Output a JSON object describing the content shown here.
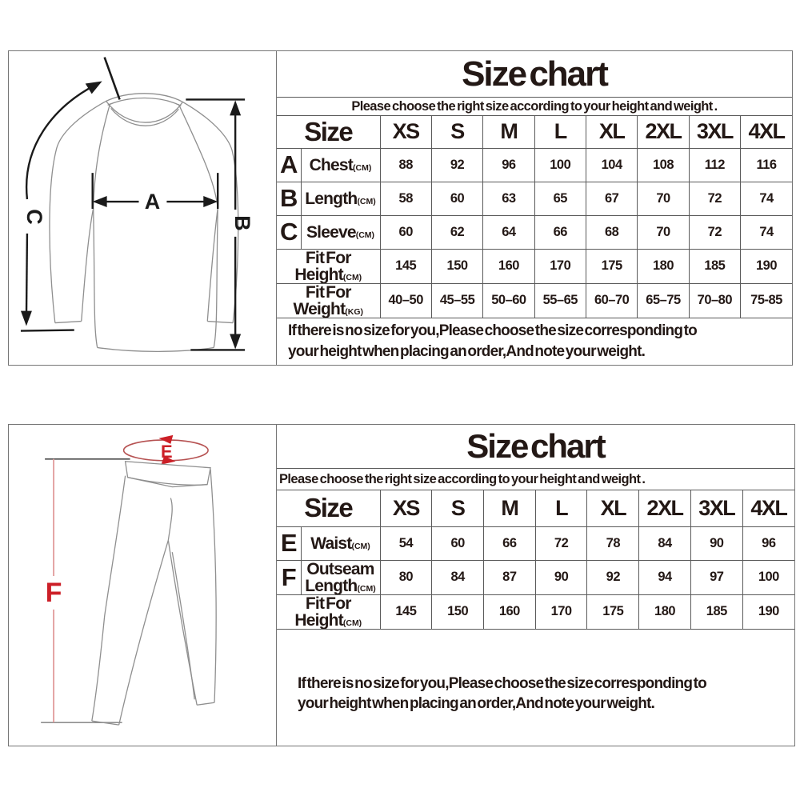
{
  "colors": {
    "red_accent": "#cc1f27",
    "red_soft": "#b65252",
    "line_dark": "#1a1a1a",
    "sketch_gray": "#8f8f8f",
    "border_gray": "#5a5a5a",
    "text": "#231815"
  },
  "panels": [
    {
      "title": "Size chart",
      "subtitle": "Please choose the right size according to your height and weight .",
      "diagram": {
        "labels": {
          "a": "A",
          "b": "B",
          "c": "C"
        }
      },
      "table": {
        "size_label": "Size",
        "columns": [
          "XS",
          "S",
          "M",
          "L",
          "XL",
          "2XL",
          "3XL",
          "4XL"
        ],
        "rows": [
          {
            "letter": "A",
            "name": "Chest",
            "unit": "(CM)",
            "values": [
              "88",
              "92",
              "96",
              "100",
              "104",
              "108",
              "112",
              "116"
            ]
          },
          {
            "letter": "B",
            "name": "Length",
            "unit": "(CM)",
            "values": [
              "58",
              "60",
              "63",
              "65",
              "67",
              "70",
              "72",
              "74"
            ]
          },
          {
            "letter": "C",
            "name": "Sleeve",
            "unit": "(CM)",
            "values": [
              "60",
              "62",
              "64",
              "66",
              "68",
              "70",
              "72",
              "74"
            ]
          },
          {
            "letter": "",
            "name": "Fit For Height",
            "unit": "(CM)",
            "values": [
              "145",
              "150",
              "160",
              "170",
              "175",
              "180",
              "185",
              "190"
            ]
          },
          {
            "letter": "",
            "name": "Fit For Weight",
            "unit": "(KG)",
            "values": [
              "40–50",
              "45–55",
              "50–60",
              "55–65",
              "60–70",
              "65–75",
              "70–80",
              "75-85"
            ]
          }
        ]
      },
      "note_line1": "If there is no size for you,Please choose the size corresponding to",
      "note_line2": "your height when placing an order,And note your weight."
    },
    {
      "title": "Size chart",
      "subtitle": "Please choose the right size according to your height and weight .",
      "diagram": {
        "labels": {
          "e": "E",
          "f": "F"
        }
      },
      "table": {
        "size_label": "Size",
        "columns": [
          "XS",
          "S",
          "M",
          "L",
          "XL",
          "2XL",
          "3XL",
          "4XL"
        ],
        "rows": [
          {
            "letter": "E",
            "name": "Waist",
            "unit": "(CM)",
            "values": [
              "54",
              "60",
              "66",
              "72",
              "78",
              "84",
              "90",
              "96"
            ]
          },
          {
            "letter": "F",
            "name": "Outseam Length",
            "unit": "(CM)",
            "values": [
              "80",
              "84",
              "87",
              "90",
              "92",
              "94",
              "97",
              "100"
            ]
          },
          {
            "letter": "",
            "name": "Fit For Height",
            "unit": "(CM)",
            "values": [
              "145",
              "150",
              "160",
              "170",
              "175",
              "180",
              "185",
              "190"
            ]
          }
        ]
      },
      "note_line1": "If there is no size for you,Please choose the size corresponding to",
      "note_line2": "your height when placing an order,And note your weight."
    }
  ]
}
